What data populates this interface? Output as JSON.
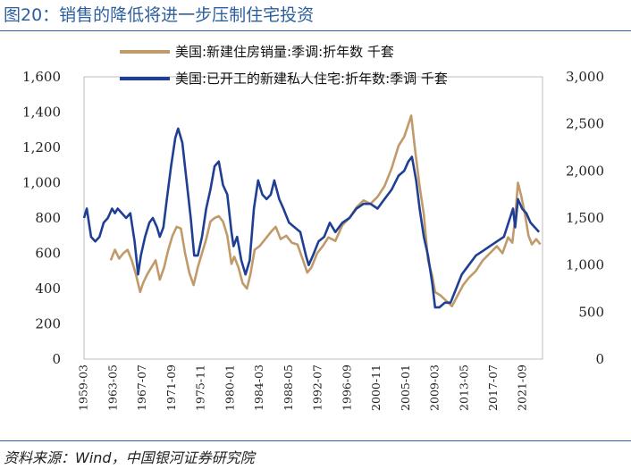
{
  "figure": {
    "title": "图20：销售的降低将进一步压制住宅投资",
    "source": "资料来源：Wind，中国银河证券研究院"
  },
  "chart_data": {
    "type": "line",
    "grid": false,
    "legend_position": "top-center",
    "x_ticks": [
      "1959-03",
      "1963-05",
      "1967-07",
      "1971-09",
      "1975-11",
      "1980-01",
      "1984-03",
      "1988-05",
      "1992-07",
      "1996-09",
      "2000-11",
      "2005-01",
      "2009-03",
      "2013-05",
      "2017-07",
      "2021-09"
    ],
    "y_left": {
      "ticks": [
        "0",
        "200",
        "400",
        "600",
        "800",
        "1,000",
        "1,200",
        "1,400",
        "1,600"
      ],
      "ylim": [
        0,
        1600
      ]
    },
    "y_right": {
      "ticks": [
        "0",
        "500",
        "1,000",
        "1,500",
        "2,000",
        "2,500",
        "3,000"
      ],
      "ylim": [
        0,
        3000
      ]
    },
    "series": [
      {
        "name": "美国:新建住房销量:季调:折年数 千套",
        "axis": "left",
        "color": "#c19a6b",
        "x": [
          1963.0,
          1963.6,
          1964.2,
          1964.8,
          1965.4,
          1966.0,
          1966.6,
          1967.2,
          1967.6,
          1968.2,
          1968.8,
          1969.4,
          1970.0,
          1970.6,
          1971.2,
          1971.8,
          1972.4,
          1973.0,
          1973.6,
          1974.2,
          1974.8,
          1975.4,
          1976.0,
          1976.6,
          1977.2,
          1977.8,
          1978.4,
          1979.0,
          1979.6,
          1980.2,
          1980.6,
          1981.2,
          1981.8,
          1982.4,
          1982.9,
          1983.5,
          1984.2,
          1985.0,
          1985.8,
          1986.5,
          1987.2,
          1988.0,
          1988.8,
          1989.6,
          1990.4,
          1991.0,
          1991.6,
          1992.4,
          1993.2,
          1994.0,
          1995.0,
          1996.0,
          1997.0,
          1998.0,
          1999.0,
          2000.0,
          2001.0,
          2002.0,
          2003.0,
          2004.0,
          2004.8,
          2005.4,
          2005.8,
          2006.4,
          2007.0,
          2007.6,
          2008.2,
          2008.8,
          2009.2,
          2010.0,
          2010.8,
          2011.6,
          2012.4,
          2013.2,
          2014.0,
          2015.0,
          2016.0,
          2017.0,
          2018.0,
          2018.8,
          2019.6,
          2020.2,
          2020.6,
          2021.0,
          2021.5,
          2022.0,
          2022.5,
          2023.0,
          2023.6,
          2024.2
        ],
        "values": [
          560,
          620,
          570,
          600,
          620,
          560,
          480,
          380,
          430,
          480,
          520,
          560,
          450,
          520,
          620,
          700,
          750,
          740,
          600,
          490,
          420,
          520,
          600,
          680,
          780,
          800,
          810,
          780,
          700,
          540,
          580,
          520,
          430,
          400,
          480,
          620,
          640,
          680,
          720,
          750,
          680,
          700,
          660,
          650,
          560,
          490,
          520,
          600,
          640,
          690,
          670,
          760,
          800,
          860,
          900,
          880,
          920,
          980,
          1080,
          1210,
          1260,
          1330,
          1380,
          1170,
          980,
          820,
          560,
          470,
          380,
          360,
          330,
          300,
          360,
          420,
          460,
          500,
          560,
          600,
          640,
          600,
          690,
          660,
          800,
          1000,
          920,
          820,
          700,
          650,
          680,
          650
        ]
      },
      {
        "name": "美国:已开工的新建私人住宅:折年数:季调 千套",
        "axis": "right",
        "color": "#1f3f93",
        "x": [
          1959.2,
          1959.6,
          1960.2,
          1960.8,
          1961.4,
          1962.0,
          1962.6,
          1963.2,
          1963.6,
          1964.0,
          1964.6,
          1965.2,
          1965.8,
          1966.4,
          1966.9,
          1967.3,
          1967.9,
          1968.5,
          1969.0,
          1969.6,
          1970.0,
          1970.5,
          1971.0,
          1971.6,
          1972.2,
          1972.6,
          1973.2,
          1973.8,
          1974.4,
          1974.9,
          1975.4,
          1976.0,
          1976.6,
          1977.2,
          1977.8,
          1978.4,
          1979.0,
          1979.6,
          1980.2,
          1980.5,
          1981.0,
          1981.6,
          1982.2,
          1982.8,
          1983.4,
          1984.0,
          1984.6,
          1985.2,
          1985.8,
          1986.3,
          1987.0,
          1987.6,
          1988.4,
          1989.2,
          1990.0,
          1990.8,
          1991.2,
          1991.8,
          1992.6,
          1993.4,
          1994.2,
          1995.0,
          1996.0,
          1997.0,
          1998.0,
          1999.0,
          2000.0,
          2001.0,
          2002.0,
          2003.0,
          2004.0,
          2004.8,
          2005.4,
          2005.9,
          2006.5,
          2007.0,
          2007.6,
          2008.2,
          2008.8,
          2009.2,
          2009.8,
          2010.6,
          2011.4,
          2012.2,
          2013.0,
          2014.0,
          2015.0,
          2016.0,
          2017.0,
          2018.0,
          2019.0,
          2020.3,
          2020.6,
          2021.0,
          2021.6,
          2022.2,
          2022.8,
          2023.4,
          2024.0
        ],
        "values": [
          1500,
          1600,
          1300,
          1250,
          1300,
          1450,
          1500,
          1600,
          1550,
          1600,
          1550,
          1500,
          1550,
          1250,
          900,
          1100,
          1300,
          1450,
          1500,
          1400,
          1300,
          1400,
          1700,
          2050,
          2350,
          2450,
          2300,
          1900,
          1500,
          1100,
          1100,
          1300,
          1600,
          1800,
          2050,
          2100,
          1850,
          1750,
          1350,
          1200,
          1300,
          1050,
          900,
          1050,
          1600,
          1900,
          1750,
          1700,
          1750,
          1900,
          1700,
          1600,
          1450,
          1400,
          1350,
          1100,
          1000,
          1100,
          1250,
          1300,
          1450,
          1350,
          1450,
          1500,
          1600,
          1650,
          1650,
          1600,
          1700,
          1800,
          1950,
          2000,
          2100,
          2150,
          1900,
          1600,
          1300,
          1100,
          800,
          550,
          550,
          600,
          600,
          750,
          900,
          1000,
          1100,
          1150,
          1200,
          1250,
          1300,
          1600,
          1400,
          1700,
          1600,
          1550,
          1450,
          1400,
          1350
        ]
      }
    ]
  }
}
